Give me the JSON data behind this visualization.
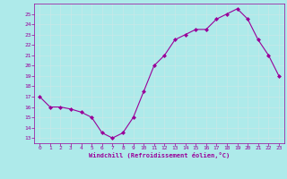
{
  "x": [
    0,
    1,
    2,
    3,
    4,
    5,
    6,
    7,
    8,
    9,
    10,
    11,
    12,
    13,
    14,
    15,
    16,
    17,
    18,
    19,
    20,
    21,
    22,
    23
  ],
  "y": [
    17,
    16,
    16,
    15.8,
    15.5,
    15,
    13.5,
    13,
    13.5,
    15,
    17.5,
    20,
    21,
    22.5,
    23,
    23.5,
    23.5,
    24.5,
    25,
    25.5,
    24.5,
    22.5,
    21,
    19
  ],
  "line_color": "#990099",
  "marker": "D",
  "marker_size": 2.0,
  "background_color": "#aeeaea",
  "grid_color": "#c8e8e8",
  "xlabel": "Windchill (Refroidissement éolien,°C)",
  "xlabel_color": "#990099",
  "tick_color": "#990099",
  "ylim": [
    12.5,
    26
  ],
  "xlim": [
    -0.5,
    23.5
  ],
  "yticks": [
    13,
    14,
    15,
    16,
    17,
    18,
    19,
    20,
    21,
    22,
    23,
    24,
    25
  ],
  "xticks": [
    0,
    1,
    2,
    3,
    4,
    5,
    6,
    7,
    8,
    9,
    10,
    11,
    12,
    13,
    14,
    15,
    16,
    17,
    18,
    19,
    20,
    21,
    22,
    23
  ],
  "spine_color": "#990099",
  "line_width": 0.8
}
